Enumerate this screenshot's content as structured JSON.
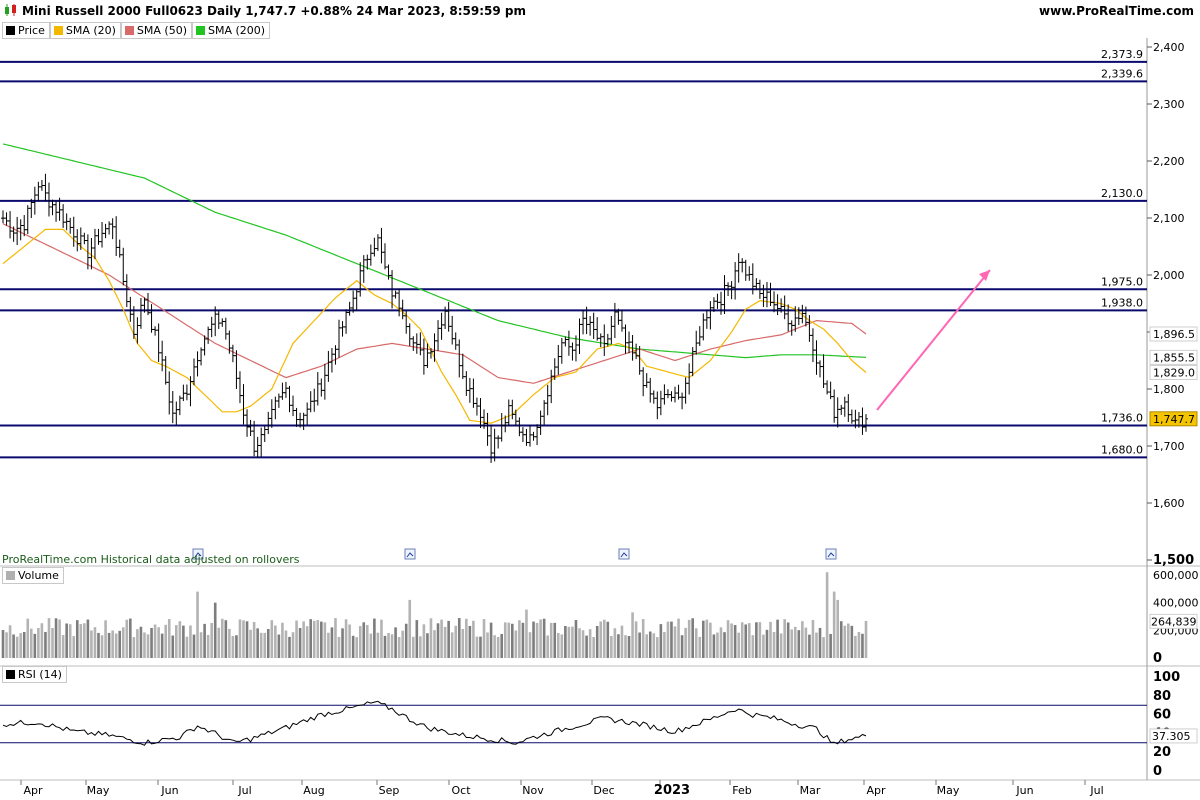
{
  "header": {
    "title": "Mini Russell 2000 Full0623 Daily 1,747.7 +0.88% 24 Mar 2023, 8:59:59 pm",
    "site": "www.ProRealTime.com"
  },
  "legend": [
    {
      "label": "Price",
      "color": "#000000"
    },
    {
      "label": "SMA (20)",
      "color": "#f5b800"
    },
    {
      "label": "SMA (50)",
      "color": "#d86a6a"
    },
    {
      "label": "SMA (200)",
      "color": "#22c422"
    }
  ],
  "footnote": "ProRealTime.com  Historical data adjusted on rollovers",
  "chart_data": [
    {
      "type": "line",
      "title": "Mini Russell 2000 Full0623 Daily",
      "x_labels": [
        "Apr",
        "May",
        "Jun",
        "Jul",
        "Aug",
        "Sep",
        "Oct",
        "Nov",
        "Dec",
        "2023",
        "Feb",
        "Mar",
        "Apr",
        "May",
        "Jun",
        "Jul"
      ],
      "ylim": [
        1500,
        2420
      ],
      "y_ticks": [
        "2,400",
        "2,300",
        "2,200",
        "2,100",
        "2,000",
        "1,900",
        "1,800",
        "1,700",
        "1,600",
        "1,500"
      ],
      "horizontal_levels": [
        2373.9,
        2339.6,
        2130.0,
        1975.0,
        1938.0,
        1736.0,
        1680.0
      ],
      "level_labels": [
        "2,373.9",
        "2,339.6",
        "2,130.0",
        "1,975.0",
        "1,938.0",
        "1,736.0",
        "1,680.0"
      ],
      "price_tags": [
        {
          "label": "1,896.5",
          "value": 1896.5,
          "color": "#d86a6a"
        },
        {
          "label": "1,855.5",
          "value": 1855.5,
          "color": "#22c422"
        },
        {
          "label": "1,829.0",
          "value": 1829.0,
          "color": "#f5b800"
        },
        {
          "label": "1,747.7",
          "value": 1747.7,
          "color": "#000000",
          "bg": "#f5c400"
        }
      ],
      "price_anchors": [
        [
          0,
          2100
        ],
        [
          3,
          2080
        ],
        [
          6,
          2090
        ],
        [
          10,
          2160
        ],
        [
          13,
          2130
        ],
        [
          16,
          2110
        ],
        [
          20,
          2075
        ],
        [
          24,
          2040
        ],
        [
          28,
          2075
        ],
        [
          31,
          2090
        ],
        [
          34,
          1990
        ],
        [
          37,
          1900
        ],
        [
          40,
          1960
        ],
        [
          44,
          1870
        ],
        [
          48,
          1755
        ],
        [
          52,
          1800
        ],
        [
          56,
          1880
        ],
        [
          60,
          1920
        ],
        [
          62,
          1920
        ],
        [
          65,
          1850
        ],
        [
          68,
          1760
        ],
        [
          71,
          1700
        ],
        [
          74,
          1720
        ],
        [
          77,
          1770
        ],
        [
          80,
          1800
        ],
        [
          83,
          1750
        ],
        [
          86,
          1760
        ],
        [
          90,
          1810
        ],
        [
          94,
          1880
        ],
        [
          98,
          1940
        ],
        [
          101,
          2000
        ],
        [
          104,
          2050
        ],
        [
          106,
          2060
        ],
        [
          108,
          2010
        ],
        [
          110,
          1970
        ],
        [
          113,
          1940
        ],
        [
          116,
          1880
        ],
        [
          119,
          1850
        ],
        [
          122,
          1890
        ],
        [
          125,
          1940
        ],
        [
          128,
          1870
        ],
        [
          131,
          1810
        ],
        [
          135,
          1760
        ],
        [
          138,
          1700
        ],
        [
          140,
          1715
        ],
        [
          143,
          1760
        ],
        [
          146,
          1730
        ],
        [
          149,
          1710
        ],
        [
          152,
          1760
        ],
        [
          155,
          1820
        ],
        [
          158,
          1880
        ],
        [
          161,
          1870
        ],
        [
          164,
          1920
        ],
        [
          167,
          1900
        ],
        [
          170,
          1870
        ],
        [
          173,
          1930
        ],
        [
          176,
          1880
        ],
        [
          179,
          1850
        ],
        [
          182,
          1800
        ],
        [
          185,
          1770
        ],
        [
          188,
          1790
        ],
        [
          191,
          1780
        ],
        [
          194,
          1830
        ],
        [
          197,
          1900
        ],
        [
          200,
          1950
        ],
        [
          203,
          1960
        ],
        [
          206,
          1990
        ],
        [
          208,
          2030
        ],
        [
          211,
          1995
        ],
        [
          214,
          1965
        ],
        [
          217,
          1960
        ],
        [
          220,
          1935
        ],
        [
          223,
          1920
        ],
        [
          226,
          1935
        ],
        [
          229,
          1880
        ],
        [
          232,
          1810
        ],
        [
          235,
          1760
        ],
        [
          238,
          1780
        ],
        [
          241,
          1740
        ],
        [
          244,
          1747.7
        ]
      ],
      "sma20_anchors": [
        [
          0,
          2020
        ],
        [
          6,
          2050
        ],
        [
          12,
          2080
        ],
        [
          17,
          2080
        ],
        [
          22,
          2050
        ],
        [
          26,
          2030
        ],
        [
          30,
          1990
        ],
        [
          34,
          1940
        ],
        [
          38,
          1880
        ],
        [
          42,
          1850
        ],
        [
          46,
          1840
        ],
        [
          52,
          1820
        ],
        [
          57,
          1790
        ],
        [
          62,
          1760
        ],
        [
          66,
          1760
        ],
        [
          70,
          1770
        ],
        [
          76,
          1800
        ],
        [
          82,
          1880
        ],
        [
          88,
          1920
        ],
        [
          94,
          1960
        ],
        [
          100,
          1990
        ],
        [
          105,
          1965
        ],
        [
          110,
          1950
        ],
        [
          114,
          1930
        ],
        [
          118,
          1905
        ],
        [
          124,
          1830
        ],
        [
          128,
          1790
        ],
        [
          132,
          1745
        ],
        [
          138,
          1740
        ],
        [
          144,
          1755
        ],
        [
          150,
          1790
        ],
        [
          156,
          1820
        ],
        [
          162,
          1830
        ],
        [
          168,
          1870
        ],
        [
          174,
          1880
        ],
        [
          178,
          1870
        ],
        [
          182,
          1840
        ],
        [
          188,
          1830
        ],
        [
          194,
          1820
        ],
        [
          200,
          1850
        ],
        [
          206,
          1900
        ],
        [
          210,
          1940
        ],
        [
          214,
          1955
        ],
        [
          220,
          1950
        ],
        [
          224,
          1940
        ],
        [
          228,
          1920
        ],
        [
          232,
          1905
        ],
        [
          236,
          1880
        ],
        [
          240,
          1850
        ],
        [
          244,
          1829
        ]
      ],
      "sma50_anchors": [
        [
          0,
          2090
        ],
        [
          10,
          2060
        ],
        [
          20,
          2030
        ],
        [
          30,
          2000
        ],
        [
          40,
          1960
        ],
        [
          50,
          1920
        ],
        [
          60,
          1880
        ],
        [
          70,
          1850
        ],
        [
          80,
          1820
        ],
        [
          90,
          1840
        ],
        [
          100,
          1870
        ],
        [
          110,
          1880
        ],
        [
          120,
          1870
        ],
        [
          130,
          1860
        ],
        [
          140,
          1820
        ],
        [
          150,
          1810
        ],
        [
          160,
          1830
        ],
        [
          170,
          1850
        ],
        [
          180,
          1870
        ],
        [
          190,
          1850
        ],
        [
          200,
          1870
        ],
        [
          210,
          1885
        ],
        [
          220,
          1895
        ],
        [
          230,
          1920
        ],
        [
          240,
          1915
        ],
        [
          244,
          1896.5
        ]
      ],
      "sma200_anchors": [
        [
          0,
          2230
        ],
        [
          20,
          2200
        ],
        [
          40,
          2170
        ],
        [
          60,
          2110
        ],
        [
          80,
          2070
        ],
        [
          100,
          2020
        ],
        [
          120,
          1970
        ],
        [
          140,
          1920
        ],
        [
          160,
          1890
        ],
        [
          180,
          1870
        ],
        [
          200,
          1860
        ],
        [
          210,
          1855
        ],
        [
          220,
          1860
        ],
        [
          230,
          1860
        ],
        [
          244,
          1855.5
        ]
      ]
    },
    {
      "type": "bar",
      "title": "Volume",
      "ylim": [
        0,
        650000
      ],
      "y_ticks": [
        "600,000",
        "400,000",
        "200,000",
        "0"
      ],
      "last_value_label": "264,839",
      "base": 180000,
      "spikes": [
        [
          55,
          480000
        ],
        [
          60,
          400000
        ],
        [
          115,
          420000
        ],
        [
          148,
          350000
        ],
        [
          178,
          330000
        ],
        [
          233,
          620000
        ],
        [
          235,
          480000
        ],
        [
          236,
          420000
        ]
      ]
    },
    {
      "type": "line",
      "title": "RSI (14)",
      "ylim": [
        0,
        100
      ],
      "y_ticks": [
        "100",
        "80",
        "60",
        "40",
        "20",
        "0"
      ],
      "levels": [
        70,
        30
      ],
      "last_value_label": "37.305",
      "rsi_anchors": [
        [
          0,
          50
        ],
        [
          10,
          52
        ],
        [
          20,
          42
        ],
        [
          30,
          38
        ],
        [
          40,
          30
        ],
        [
          50,
          36
        ],
        [
          55,
          48
        ],
        [
          60,
          40
        ],
        [
          65,
          30
        ],
        [
          70,
          34
        ],
        [
          80,
          46
        ],
        [
          90,
          60
        ],
        [
          100,
          68
        ],
        [
          105,
          73
        ],
        [
          110,
          66
        ],
        [
          115,
          55
        ],
        [
          120,
          46
        ],
        [
          130,
          38
        ],
        [
          140,
          33
        ],
        [
          145,
          30
        ],
        [
          150,
          36
        ],
        [
          160,
          46
        ],
        [
          170,
          56
        ],
        [
          180,
          50
        ],
        [
          190,
          42
        ],
        [
          200,
          55
        ],
        [
          207,
          66
        ],
        [
          212,
          60
        ],
        [
          218,
          56
        ],
        [
          224,
          50
        ],
        [
          230,
          45
        ],
        [
          235,
          28
        ],
        [
          238,
          33
        ],
        [
          244,
          37.3
        ]
      ]
    }
  ]
}
